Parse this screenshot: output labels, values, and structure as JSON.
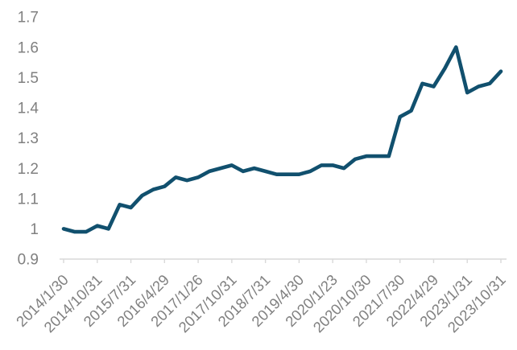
{
  "chart_data": {
    "type": "line",
    "title": "",
    "xlabel": "",
    "ylabel": "",
    "ylim": [
      0.9,
      1.7
    ],
    "y_tick_labels": [
      "0.9",
      "1",
      "1.1",
      "1.2",
      "1.3",
      "1.4",
      "1.5",
      "1.6",
      "1.7"
    ],
    "x_tick_labels": [
      "2014/1/30",
      "2014/10/31",
      "2015/7/31",
      "2016/4/29",
      "2017/1/26",
      "2017/10/31",
      "2018/7/31",
      "2019/4/30",
      "2020/1/23",
      "2020/10/30",
      "2021/7/30",
      "2022/4/29",
      "2023/1/31",
      "2023/10/31"
    ],
    "x_label_interval": 3,
    "values": [
      1.0,
      0.99,
      0.99,
      1.01,
      1.0,
      1.08,
      1.07,
      1.11,
      1.13,
      1.14,
      1.17,
      1.16,
      1.17,
      1.19,
      1.2,
      1.21,
      1.19,
      1.2,
      1.19,
      1.18,
      1.18,
      1.18,
      1.19,
      1.21,
      1.21,
      1.2,
      1.23,
      1.24,
      1.24,
      1.24,
      1.37,
      1.39,
      1.48,
      1.47,
      1.53,
      1.6,
      1.45,
      1.47,
      1.48,
      1.52
    ],
    "gridlines": false,
    "legend": false
  },
  "style": {
    "line_color": "#11506e",
    "axis_color": "#d9d9d9",
    "tick_color": "#d9d9d9",
    "label_color": "#808080",
    "background": "#ffffff"
  }
}
